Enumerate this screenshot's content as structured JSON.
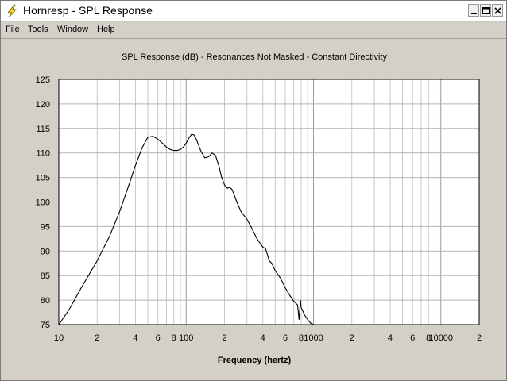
{
  "window": {
    "title": "Hornresp - SPL Response",
    "icon": "lightning-icon"
  },
  "menu": [
    {
      "label": "File"
    },
    {
      "label": "Tools"
    },
    {
      "label": "Window"
    },
    {
      "label": "Help"
    }
  ],
  "chart_data": {
    "type": "line",
    "title": "SPL Response (dB) - Resonances Not Masked - Constant Directivity",
    "xlabel": "Frequency (hertz)",
    "ylabel": "",
    "xscale": "log",
    "xlim": [
      10,
      20000
    ],
    "ylim": [
      75,
      125
    ],
    "grid": true,
    "yticks": [
      "125",
      "120",
      "115",
      "110",
      "105",
      "100",
      "95",
      "90",
      "85",
      "80",
      "75"
    ],
    "xticks": [
      {
        "value": 10,
        "label": "10"
      },
      {
        "value": 20,
        "label": "2"
      },
      {
        "value": 40,
        "label": "4"
      },
      {
        "value": 60,
        "label": "6"
      },
      {
        "value": 80,
        "label": "8"
      },
      {
        "value": 100,
        "label": "100"
      },
      {
        "value": 200,
        "label": "2"
      },
      {
        "value": 400,
        "label": "4"
      },
      {
        "value": 600,
        "label": "6"
      },
      {
        "value": 800,
        "label": "8"
      },
      {
        "value": 1000,
        "label": "1000"
      },
      {
        "value": 2000,
        "label": "2"
      },
      {
        "value": 4000,
        "label": "4"
      },
      {
        "value": 6000,
        "label": "6"
      },
      {
        "value": 8000,
        "label": "8"
      },
      {
        "value": 10000,
        "label": "10000"
      },
      {
        "value": 20000,
        "label": "2"
      }
    ],
    "series": [
      {
        "color": "#000000",
        "points": [
          [
            10,
            75
          ],
          [
            12,
            78
          ],
          [
            15,
            82.5
          ],
          [
            20,
            88
          ],
          [
            25,
            93
          ],
          [
            30,
            98
          ],
          [
            35,
            103
          ],
          [
            40,
            107.5
          ],
          [
            45,
            111
          ],
          [
            50,
            113.2
          ],
          [
            55,
            113.4
          ],
          [
            60,
            112.8
          ],
          [
            65,
            112
          ],
          [
            70,
            111.2
          ],
          [
            75,
            110.7
          ],
          [
            80,
            110.5
          ],
          [
            85,
            110.5
          ],
          [
            90,
            110.7
          ],
          [
            95,
            111.2
          ],
          [
            100,
            112
          ],
          [
            105,
            113
          ],
          [
            110,
            113.8
          ],
          [
            115,
            113.7
          ],
          [
            120,
            112.8
          ],
          [
            130,
            110.5
          ],
          [
            140,
            109
          ],
          [
            150,
            109.2
          ],
          [
            160,
            110
          ],
          [
            170,
            109.5
          ],
          [
            180,
            107.5
          ],
          [
            190,
            105
          ],
          [
            200,
            103.5
          ],
          [
            210,
            102.8
          ],
          [
            220,
            103
          ],
          [
            230,
            102.5
          ],
          [
            250,
            100
          ],
          [
            270,
            98
          ],
          [
            300,
            96.5
          ],
          [
            330,
            94.5
          ],
          [
            360,
            92.5
          ],
          [
            400,
            90.8
          ],
          [
            420,
            90.5
          ],
          [
            450,
            88
          ],
          [
            470,
            87.5
          ],
          [
            500,
            86
          ],
          [
            550,
            84.5
          ],
          [
            600,
            82.5
          ],
          [
            650,
            81
          ],
          [
            700,
            79.8
          ],
          [
            750,
            79
          ],
          [
            770,
            76
          ],
          [
            790,
            80
          ],
          [
            800,
            78.5
          ],
          [
            850,
            77
          ],
          [
            900,
            76
          ],
          [
            950,
            75.3
          ],
          [
            1000,
            75
          ]
        ]
      }
    ]
  }
}
